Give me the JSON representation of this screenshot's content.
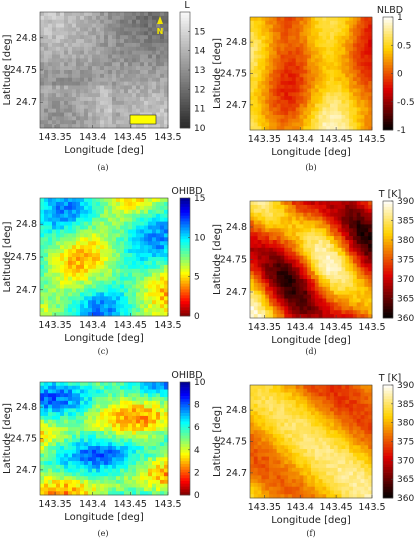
{
  "chart_data": [
    {
      "type": "heatmap",
      "caption": "(a)",
      "xlabel": "Longitude [deg]",
      "ylabel": "Latitude [deg]",
      "xlim": [
        143.33,
        143.5
      ],
      "ylim": [
        24.66,
        24.84
      ],
      "xticks": [
        "143.35",
        "143.4",
        "143.45",
        "143.5"
      ],
      "yticks": [
        "24.7",
        "24.75",
        "24.8"
      ],
      "colorbar": {
        "title": "L",
        "range": [
          10,
          16
        ],
        "ticks": [
          "10",
          "11",
          "12",
          "13",
          "14",
          "15"
        ],
        "colormap": "gray"
      },
      "north_arrow": {
        "label": "N"
      },
      "annotation": {
        "shape": "rectangle",
        "color": "#ffff00"
      }
    },
    {
      "type": "heatmap",
      "caption": "(b)",
      "xlabel": "Longitude [deg]",
      "ylabel": "Latitude [deg]",
      "xlim": [
        143.33,
        143.5
      ],
      "ylim": [
        24.66,
        24.84
      ],
      "xticks": [
        "143.35",
        "143.4",
        "143.45",
        "143.5"
      ],
      "yticks": [
        "24.7",
        "24.75",
        "24.8"
      ],
      "colorbar": {
        "title": "NLBD",
        "range": [
          -1,
          1
        ],
        "ticks": [
          "-1",
          "-0.5",
          "0",
          "0.5",
          "1"
        ],
        "colormap": "hot"
      }
    },
    {
      "type": "heatmap",
      "caption": "(c)",
      "xlabel": "Longitude [deg]",
      "ylabel": "Latitude [deg]",
      "xlim": [
        143.33,
        143.5
      ],
      "ylim": [
        24.66,
        24.84
      ],
      "xticks": [
        "143.35",
        "143.4",
        "143.45",
        "143.5"
      ],
      "yticks": [
        "24.7",
        "24.75",
        "24.8"
      ],
      "colorbar": {
        "title": "OHIBD",
        "range": [
          0,
          15
        ],
        "ticks": [
          "0",
          "5",
          "10",
          "15"
        ],
        "colormap": "jet-reversed"
      }
    },
    {
      "type": "heatmap",
      "caption": "(d)",
      "xlabel": "Longitude [deg]",
      "ylabel": "Latitude [deg]",
      "xlim": [
        143.33,
        143.5
      ],
      "ylim": [
        24.66,
        24.84
      ],
      "xticks": [
        "143.35",
        "143.4",
        "143.45",
        "143.5"
      ],
      "yticks": [
        "24.7",
        "24.75",
        "24.8"
      ],
      "colorbar": {
        "title": "T [K]",
        "range": [
          360,
          390
        ],
        "ticks": [
          "360",
          "365",
          "370",
          "375",
          "380",
          "385",
          "390"
        ],
        "colormap": "hot"
      }
    },
    {
      "type": "heatmap",
      "caption": "(e)",
      "xlabel": "Longitude [deg]",
      "ylabel": "Latitude [deg]",
      "xlim": [
        143.33,
        143.5
      ],
      "ylim": [
        24.66,
        24.84
      ],
      "xticks": [
        "143.35",
        "143.4",
        "143.45",
        "143.5"
      ],
      "yticks": [
        "24.7",
        "24.75",
        "24.8"
      ],
      "colorbar": {
        "title": "OHIBD",
        "range": [
          0,
          10
        ],
        "ticks": [
          "0",
          "2",
          "4",
          "6",
          "8",
          "10"
        ],
        "colormap": "jet-reversed"
      }
    },
    {
      "type": "heatmap",
      "caption": "(f)",
      "xlabel": "Longitude [deg]",
      "ylabel": "Latitude [deg]",
      "xlim": [
        143.33,
        143.5
      ],
      "ylim": [
        24.66,
        24.84
      ],
      "xticks": [
        "143.35",
        "143.4",
        "143.45",
        "143.5"
      ],
      "yticks": [
        "24.7",
        "24.75",
        "24.8"
      ],
      "colorbar": {
        "title": "T [K]",
        "range": [
          360,
          390
        ],
        "ticks": [
          "360",
          "365",
          "370",
          "375",
          "380",
          "385",
          "390"
        ],
        "colormap": "hot"
      }
    }
  ]
}
